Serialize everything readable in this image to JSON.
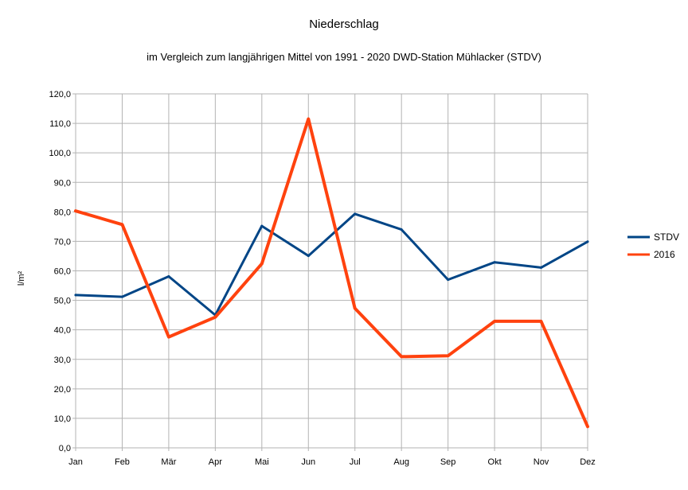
{
  "chart_data": {
    "type": "line",
    "title": "Niederschlag",
    "subtitle": "im Vergleich zum langjährigen Mittel von 1991 - 2020 DWD-Station Mühlacker (STDV)",
    "xlabel": "",
    "ylabel": "l/m²",
    "categories": [
      "Jan",
      "Feb",
      "Mär",
      "Apr",
      "Mai",
      "Jun",
      "Jul",
      "Aug",
      "Sep",
      "Okt",
      "Nov",
      "Dez"
    ],
    "ylim": [
      0,
      120
    ],
    "ytick_step": 10,
    "ytick_labels": [
      "0,0",
      "10,0",
      "20,0",
      "30,0",
      "40,0",
      "50,0",
      "60,0",
      "70,0",
      "80,0",
      "90,0",
      "100,0",
      "110,0",
      "120,0"
    ],
    "grid": true,
    "legend_position": "right",
    "series": [
      {
        "name": "STDV",
        "color": "#004586",
        "values": [
          51.8,
          51.2,
          58.1,
          45.0,
          75.2,
          65.1,
          79.3,
          74.0,
          57.0,
          62.9,
          61.1,
          69.9
        ]
      },
      {
        "name": "2016",
        "color": "#ff420e",
        "values": [
          80.3,
          75.7,
          37.6,
          44.3,
          62.4,
          111.5,
          47.3,
          30.9,
          31.2,
          42.9,
          42.9,
          7.2
        ]
      }
    ]
  }
}
